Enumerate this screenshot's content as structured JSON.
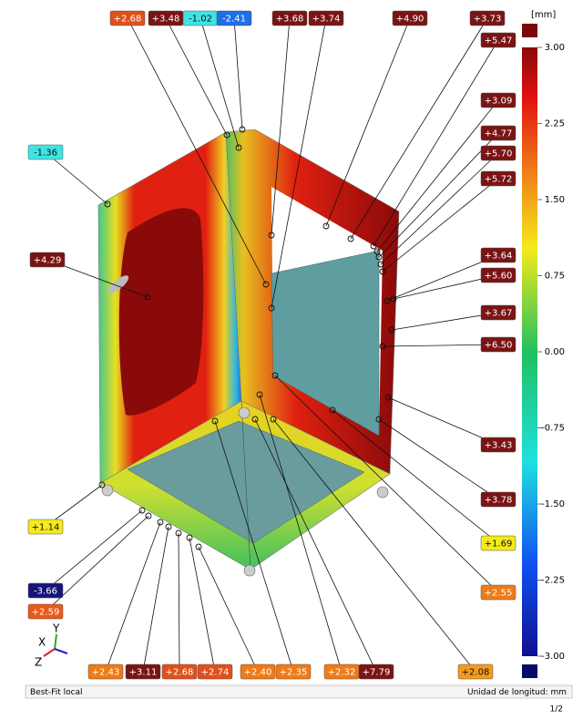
{
  "labels": [
    {
      "text": "+2.68",
      "color": "#e0501c"
    },
    {
      "text": "+3.48",
      "color": "#7a1414"
    },
    {
      "text": "-1.02",
      "color": "#3fe3e3"
    },
    {
      "text": "-2.41",
      "color": "#1f6fe6"
    },
    {
      "text": "+3.68",
      "color": "#7a1414"
    },
    {
      "text": "+3.74",
      "color": "#7a1414"
    },
    {
      "text": "+4.90",
      "color": "#7a1414"
    },
    {
      "text": "+3.73",
      "color": "#7a1414"
    },
    {
      "text": "+5.47",
      "color": "#7a1414"
    },
    {
      "text": "+3.09",
      "color": "#7a1414"
    },
    {
      "text": "+4.77",
      "color": "#7a1414"
    },
    {
      "text": "+5.70",
      "color": "#7a1414"
    },
    {
      "text": "+5.72",
      "color": "#7a1414"
    },
    {
      "text": "+3.64",
      "color": "#7a1414"
    },
    {
      "text": "+5.60",
      "color": "#7a1414"
    },
    {
      "text": "+3.67",
      "color": "#7a1414"
    },
    {
      "text": "+6.50",
      "color": "#7a1414"
    },
    {
      "text": "+3.43",
      "color": "#7a1414"
    },
    {
      "text": "+3.78",
      "color": "#7a1414"
    },
    {
      "text": "+1.69",
      "color": "#f5ea1a"
    },
    {
      "text": "+2.55",
      "color": "#f07a18"
    },
    {
      "text": "-1.36",
      "color": "#3fe3e3"
    },
    {
      "text": "+4.29",
      "color": "#7a1414"
    },
    {
      "text": "+1.14",
      "color": "#f5ea1a"
    },
    {
      "text": "-3.66",
      "color": "#14147a"
    },
    {
      "text": "+2.59",
      "color": "#ea5a18"
    },
    {
      "text": "+2.43",
      "color": "#f07a18"
    },
    {
      "text": "+3.11",
      "color": "#7a1414"
    },
    {
      "text": "+2.68",
      "color": "#e0501c"
    },
    {
      "text": "+2.74",
      "color": "#e0501c"
    },
    {
      "text": "+2.40",
      "color": "#f07a18"
    },
    {
      "text": "+2.35",
      "color": "#f07a18"
    },
    {
      "text": "+2.32",
      "color": "#f07a18"
    },
    {
      "text": "+7.79",
      "color": "#7a1414"
    },
    {
      "text": "+2.08",
      "color": "#f59a20"
    }
  ],
  "colorbar": {
    "unit": "[mm]",
    "ticks": [
      "3.00",
      "2.25",
      "1.50",
      "0.75",
      "0.00",
      "-0.75",
      "-1.50",
      "-2.25",
      "-3.00"
    ]
  },
  "axes": {
    "x": "X",
    "y": "Y",
    "z": "Z"
  },
  "footer": {
    "left": "Best-Fit local",
    "right": "Unidad de longitud: mm",
    "page": "1/2"
  }
}
